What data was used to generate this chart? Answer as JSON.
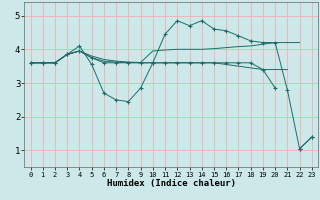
{
  "title": "",
  "xlabel": "Humidex (Indice chaleur)",
  "xlim": [
    -0.5,
    23.5
  ],
  "ylim": [
    0.5,
    5.4
  ],
  "xticks": [
    0,
    1,
    2,
    3,
    4,
    5,
    6,
    7,
    8,
    9,
    10,
    11,
    12,
    13,
    14,
    15,
    16,
    17,
    18,
    19,
    20,
    21,
    22,
    23
  ],
  "yticks": [
    1,
    2,
    3,
    4,
    5
  ],
  "bg_color": "#cde8e8",
  "grid_color": "#e8b8b8",
  "line_color": "#1e6b6b",
  "lines": [
    {
      "x": [
        0,
        1,
        2,
        3,
        4,
        5,
        6,
        7,
        8,
        9,
        10,
        11,
        12,
        13,
        14,
        15,
        16,
        17,
        18,
        19,
        20,
        21,
        22,
        23
      ],
      "y": [
        3.6,
        3.6,
        3.6,
        3.85,
        4.1,
        3.55,
        2.7,
        2.5,
        2.45,
        2.85,
        3.6,
        3.6,
        3.6,
        3.6,
        3.6,
        3.6,
        3.6,
        3.6,
        3.6,
        3.4,
        2.85,
        null,
        1.05,
        1.4
      ],
      "marker": true
    },
    {
      "x": [
        0,
        1,
        2,
        3,
        4,
        5,
        6,
        7,
        8,
        9,
        10,
        11,
        12,
        13,
        14,
        15,
        16,
        17,
        18,
        19,
        20,
        21,
        22,
        23
      ],
      "y": [
        3.6,
        3.6,
        3.6,
        3.85,
        3.95,
        3.75,
        3.6,
        3.6,
        3.6,
        3.6,
        3.6,
        4.45,
        4.85,
        4.7,
        4.85,
        4.6,
        4.55,
        4.4,
        4.25,
        4.2,
        4.2,
        2.8,
        1.05,
        1.4
      ],
      "marker": true
    },
    {
      "x": [
        0,
        1,
        2,
        3,
        4,
        5,
        6,
        7,
        8,
        9,
        10,
        11,
        12,
        13,
        14,
        15,
        16,
        17,
        18,
        19,
        20,
        21,
        22
      ],
      "y": [
        3.6,
        3.6,
        3.6,
        3.85,
        3.95,
        3.8,
        3.7,
        3.65,
        3.62,
        3.61,
        3.95,
        3.98,
        4.0,
        4.0,
        4.0,
        4.02,
        4.05,
        4.08,
        4.1,
        4.15,
        4.2,
        4.2,
        4.2
      ],
      "marker": false
    },
    {
      "x": [
        0,
        1,
        2,
        3,
        4,
        5,
        6,
        7,
        8,
        9,
        10,
        11,
        12,
        13,
        14,
        15,
        16,
        17,
        18,
        19,
        20,
        21
      ],
      "y": [
        3.6,
        3.6,
        3.6,
        3.85,
        3.95,
        3.75,
        3.65,
        3.62,
        3.61,
        3.6,
        3.6,
        3.6,
        3.6,
        3.6,
        3.6,
        3.6,
        3.55,
        3.5,
        3.45,
        3.4,
        3.4,
        3.4
      ],
      "marker": false
    }
  ]
}
